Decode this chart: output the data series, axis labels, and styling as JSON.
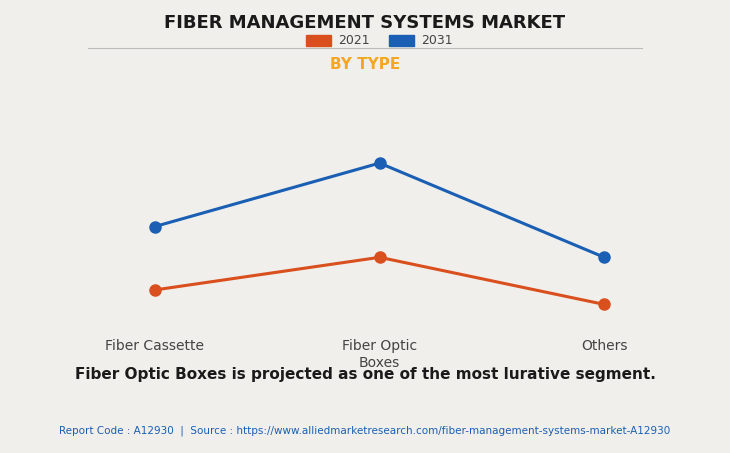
{
  "title": "FIBER MANAGEMENT SYSTEMS MARKET",
  "subtitle": "BY TYPE",
  "subtitle_color": "#F5A623",
  "categories": [
    "Fiber Cassette",
    "Fiber Optic\nBoxes",
    "Others"
  ],
  "series": [
    {
      "label": "2021",
      "color": "#D94F1E",
      "values": [
        2.0,
        3.8,
        1.2
      ]
    },
    {
      "label": "2031",
      "color": "#1A5FB4",
      "values": [
        5.5,
        9.0,
        3.8
      ]
    }
  ],
  "background_color": "#F0EFEB",
  "plot_background_color": "#F0EFEB",
  "grid_color": "#CCCCCC",
  "ylim": [
    0,
    11
  ],
  "annotation": "Fiber Optic Boxes is projected as one of the most lurative segment.",
  "footer": "Report Code : A12930  |  Source : https://www.alliedmarketresearch.com/fiber-management-systems-market-A12930",
  "footer_color": "#1A5FB4",
  "title_fontsize": 13,
  "subtitle_fontsize": 11,
  "annotation_fontsize": 11,
  "footer_fontsize": 7.5,
  "legend_fontsize": 9,
  "marker_size": 8,
  "line_width": 2.2
}
